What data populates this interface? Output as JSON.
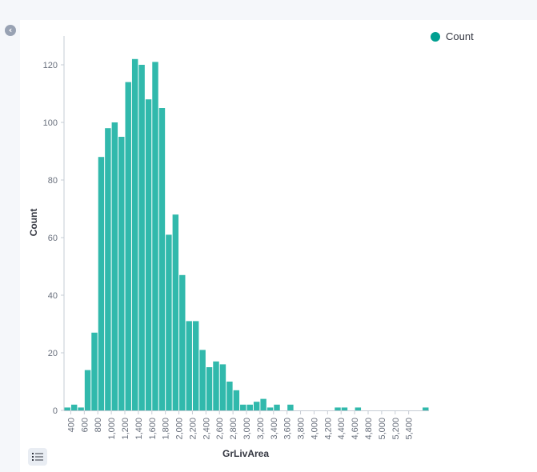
{
  "legend": {
    "label": "Count"
  },
  "icons": {
    "collapse": "chevron-left-icon",
    "legend_toggle": "list-icon"
  },
  "colors": {
    "bar": "#31b9ac",
    "legend_dot": "#009f90",
    "axis": "#c6ccd4",
    "background": "#ffffff",
    "panel": "#f5f7fa"
  },
  "chart_data": {
    "type": "bar",
    "title": "",
    "xlabel": "GrLivArea",
    "ylabel": "Count",
    "bin_width": 100,
    "ylim": [
      0,
      130
    ],
    "grid": false,
    "legend_position": "top-right",
    "series": [
      {
        "name": "Count",
        "bins": [
          {
            "x": 300,
            "count": 1
          },
          {
            "x": 400,
            "count": 2
          },
          {
            "x": 500,
            "count": 1
          },
          {
            "x": 600,
            "count": 14
          },
          {
            "x": 700,
            "count": 27
          },
          {
            "x": 800,
            "count": 88
          },
          {
            "x": 900,
            "count": 98
          },
          {
            "x": 1000,
            "count": 100
          },
          {
            "x": 1100,
            "count": 95
          },
          {
            "x": 1200,
            "count": 114
          },
          {
            "x": 1300,
            "count": 122
          },
          {
            "x": 1400,
            "count": 120
          },
          {
            "x": 1500,
            "count": 108
          },
          {
            "x": 1600,
            "count": 121
          },
          {
            "x": 1700,
            "count": 105
          },
          {
            "x": 1800,
            "count": 61
          },
          {
            "x": 1900,
            "count": 68
          },
          {
            "x": 2000,
            "count": 47
          },
          {
            "x": 2100,
            "count": 31
          },
          {
            "x": 2200,
            "count": 31
          },
          {
            "x": 2300,
            "count": 21
          },
          {
            "x": 2400,
            "count": 15
          },
          {
            "x": 2500,
            "count": 17
          },
          {
            "x": 2600,
            "count": 16
          },
          {
            "x": 2700,
            "count": 10
          },
          {
            "x": 2800,
            "count": 7
          },
          {
            "x": 2900,
            "count": 2
          },
          {
            "x": 3000,
            "count": 2
          },
          {
            "x": 3100,
            "count": 3
          },
          {
            "x": 3200,
            "count": 4
          },
          {
            "x": 3300,
            "count": 1
          },
          {
            "x": 3400,
            "count": 2
          },
          {
            "x": 3600,
            "count": 2
          },
          {
            "x": 4300,
            "count": 1
          },
          {
            "x": 4400,
            "count": 1
          },
          {
            "x": 4600,
            "count": 1
          },
          {
            "x": 5600,
            "count": 1
          }
        ]
      }
    ],
    "x_ticks": [
      "400",
      "600",
      "800",
      "1,000",
      "1,200",
      "1,400",
      "1,600",
      "1,800",
      "2,000",
      "2,200",
      "2,400",
      "2,600",
      "2,800",
      "3,000",
      "3,200",
      "3,400",
      "3,600",
      "3,800",
      "4,000",
      "4,200",
      "4,400",
      "4,600",
      "4,800",
      "5,000",
      "5,200",
      "5,400"
    ],
    "x_tick_values": [
      400,
      600,
      800,
      1000,
      1200,
      1400,
      1600,
      1800,
      2000,
      2200,
      2400,
      2600,
      2800,
      3000,
      3200,
      3400,
      3600,
      3800,
      4000,
      4200,
      4400,
      4600,
      4800,
      5000,
      5200,
      5400
    ],
    "y_ticks": [
      "0",
      "20",
      "40",
      "60",
      "80",
      "100",
      "120"
    ],
    "y_tick_values": [
      0,
      20,
      40,
      60,
      80,
      100,
      120
    ]
  }
}
